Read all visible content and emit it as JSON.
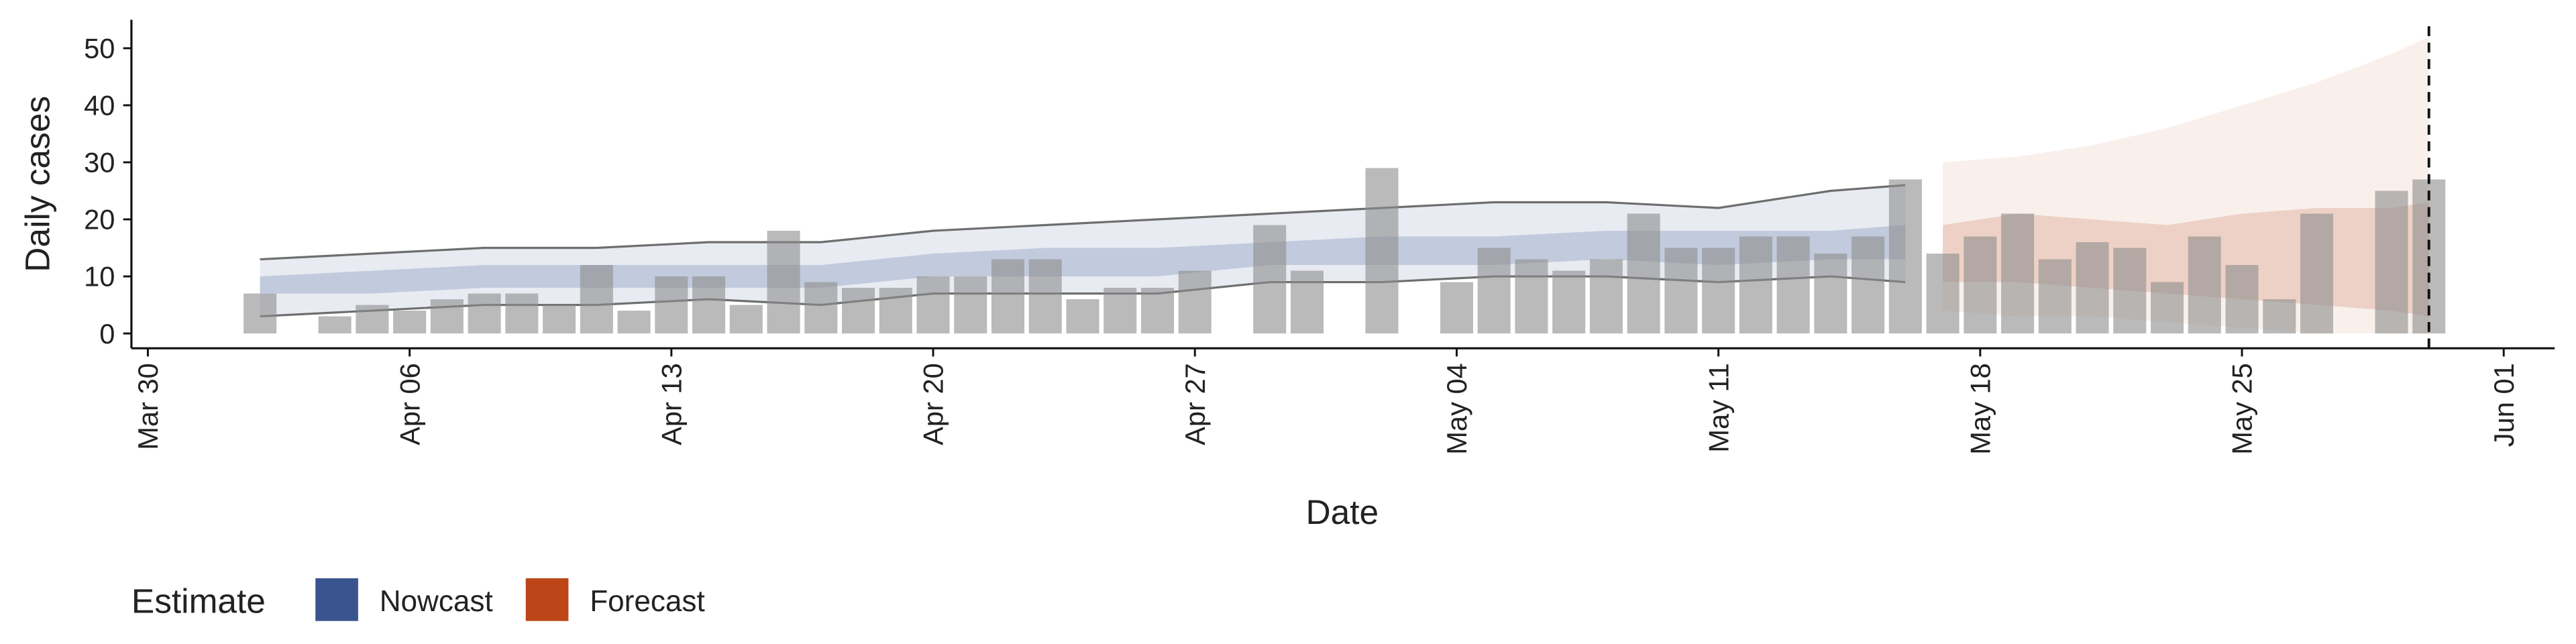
{
  "chart_data": {
    "type": "bar",
    "x_label": "Date",
    "y_label": "Daily cases",
    "x": [
      "Apr 02",
      "Apr 03",
      "Apr 04",
      "Apr 05",
      "Apr 06",
      "Apr 07",
      "Apr 08",
      "Apr 09",
      "Apr 10",
      "Apr 11",
      "Apr 12",
      "Apr 13",
      "Apr 14",
      "Apr 15",
      "Apr 16",
      "Apr 17",
      "Apr 18",
      "Apr 19",
      "Apr 20",
      "Apr 21",
      "Apr 22",
      "Apr 23",
      "Apr 24",
      "Apr 25",
      "Apr 26",
      "Apr 27",
      "Apr 28",
      "Apr 29",
      "Apr 30",
      "May 01",
      "May 02",
      "May 03",
      "May 04",
      "May 05",
      "May 06",
      "May 07",
      "May 08",
      "May 09",
      "May 10",
      "May 11",
      "May 12",
      "May 13",
      "May 14",
      "May 15",
      "May 16",
      "May 17",
      "May 18",
      "May 19",
      "May 20",
      "May 21",
      "May 22",
      "May 23",
      "May 24",
      "May 25",
      "May 26",
      "May 27",
      "May 28",
      "May 29",
      "May 30"
    ],
    "values": [
      7,
      null,
      3,
      5,
      4,
      6,
      7,
      7,
      5,
      12,
      4,
      10,
      10,
      5,
      18,
      9,
      8,
      8,
      10,
      10,
      13,
      13,
      6,
      8,
      8,
      11,
      null,
      19,
      11,
      null,
      29,
      null,
      9,
      15,
      13,
      11,
      13,
      21,
      15,
      15,
      17,
      17,
      14,
      17,
      27,
      14,
      17,
      21,
      13,
      16,
      15,
      9,
      17,
      12,
      6,
      21,
      null,
      25,
      27
    ],
    "color": "#8c8c8c",
    "xlim": [
      "Mar 30",
      "Jun 01"
    ],
    "xticks": [
      "Mar 30",
      "Apr 06",
      "Apr 13",
      "Apr 20",
      "Apr 27",
      "May 04",
      "May 11",
      "May 18",
      "May 25",
      "Jun 01"
    ],
    "ylim": [
      -2.6,
      55
    ],
    "yticks": [
      0,
      10,
      20,
      30,
      40,
      50
    ],
    "vline": "May 30",
    "legend": {
      "title": "Estimate",
      "position": "bottom-left"
    },
    "bands": [
      {
        "name": "Nowcast",
        "color": "#2f4b8a",
        "outline": true,
        "x": [
          "Apr 02",
          "Apr 05",
          "Apr 08",
          "Apr 11",
          "Apr 14",
          "Apr 17",
          "Apr 20",
          "Apr 23",
          "Apr 26",
          "Apr 29",
          "May 02",
          "May 05",
          "May 08",
          "May 11",
          "May 14",
          "May 16"
        ],
        "lower90": [
          3,
          4,
          5,
          5,
          6,
          5,
          7,
          7,
          7,
          9,
          9,
          10,
          10,
          9,
          10,
          9
        ],
        "upper90": [
          13,
          14,
          15,
          15,
          16,
          16,
          18,
          19,
          20,
          21,
          22,
          23,
          23,
          22,
          25,
          26
        ],
        "lower50": [
          7,
          7,
          8,
          8,
          8,
          8,
          10,
          10,
          10,
          12,
          12,
          12,
          13,
          12,
          13,
          13
        ],
        "upper50": [
          10,
          11,
          12,
          12,
          12,
          12,
          14,
          15,
          15,
          16,
          17,
          17,
          18,
          18,
          18,
          19
        ]
      },
      {
        "name": "Forecast",
        "color": "#b83c0c",
        "outline": false,
        "x": [
          "May 17",
          "May 19",
          "May 21",
          "May 23",
          "May 25",
          "May 27",
          "May 29",
          "May 30"
        ],
        "lower90": [
          4,
          3,
          3,
          2,
          1,
          0,
          0,
          0
        ],
        "upper90": [
          30,
          31,
          33,
          36,
          40,
          44,
          49,
          52
        ],
        "lower50": [
          9,
          9,
          8,
          7,
          6,
          5,
          4,
          3
        ],
        "upper50": [
          19,
          21,
          20,
          19,
          21,
          22,
          22,
          23
        ]
      }
    ]
  }
}
